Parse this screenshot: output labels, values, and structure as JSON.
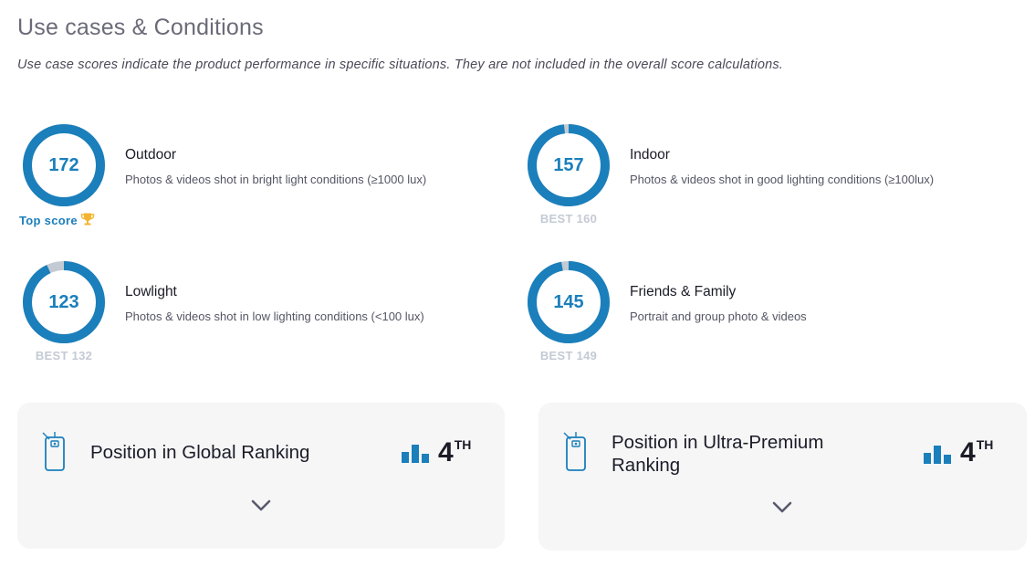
{
  "header": {
    "title": "Use cases & Conditions",
    "subtitle": "Use case scores indicate the product performance in specific situations. They are not included in the overall score calculations."
  },
  "usecases": [
    {
      "name": "Outdoor",
      "description": "Photos & videos shot in bright light conditions (≥1000 lux)",
      "score": "172",
      "best": "",
      "top_label": "Top score",
      "fill_fraction": 1.0
    },
    {
      "name": "Indoor",
      "description": "Photos & videos shot in good lighting conditions (≥100lux)",
      "score": "157",
      "best": "BEST 160",
      "fill_fraction": 0.98
    },
    {
      "name": "Lowlight",
      "description": "Photos & videos shot in low lighting conditions (<100 lux)",
      "score": "123",
      "best": "BEST 132",
      "fill_fraction": 0.93
    },
    {
      "name": "Friends & Family",
      "description": "Portrait and group photo & videos",
      "score": "145",
      "best": "BEST 149",
      "fill_fraction": 0.97
    }
  ],
  "rankings": [
    {
      "label": "Position in Global Ranking",
      "position": "4",
      "suffix": "TH"
    },
    {
      "label": "Position in Ultra-Premium Ranking",
      "position": "4",
      "suffix": "TH"
    }
  ],
  "colors": {
    "accent": "#1a7fbb",
    "ring_track": "#c4cad4",
    "best_text": "#c4cad4",
    "card_bg": "#f6f6f7",
    "trophy": "#f2b531"
  },
  "icons": {
    "trophy": "trophy-icon",
    "phone": "smartphone-camera-icon",
    "rank": "bar-chart-icon",
    "expand": "chevron-down-icon"
  }
}
